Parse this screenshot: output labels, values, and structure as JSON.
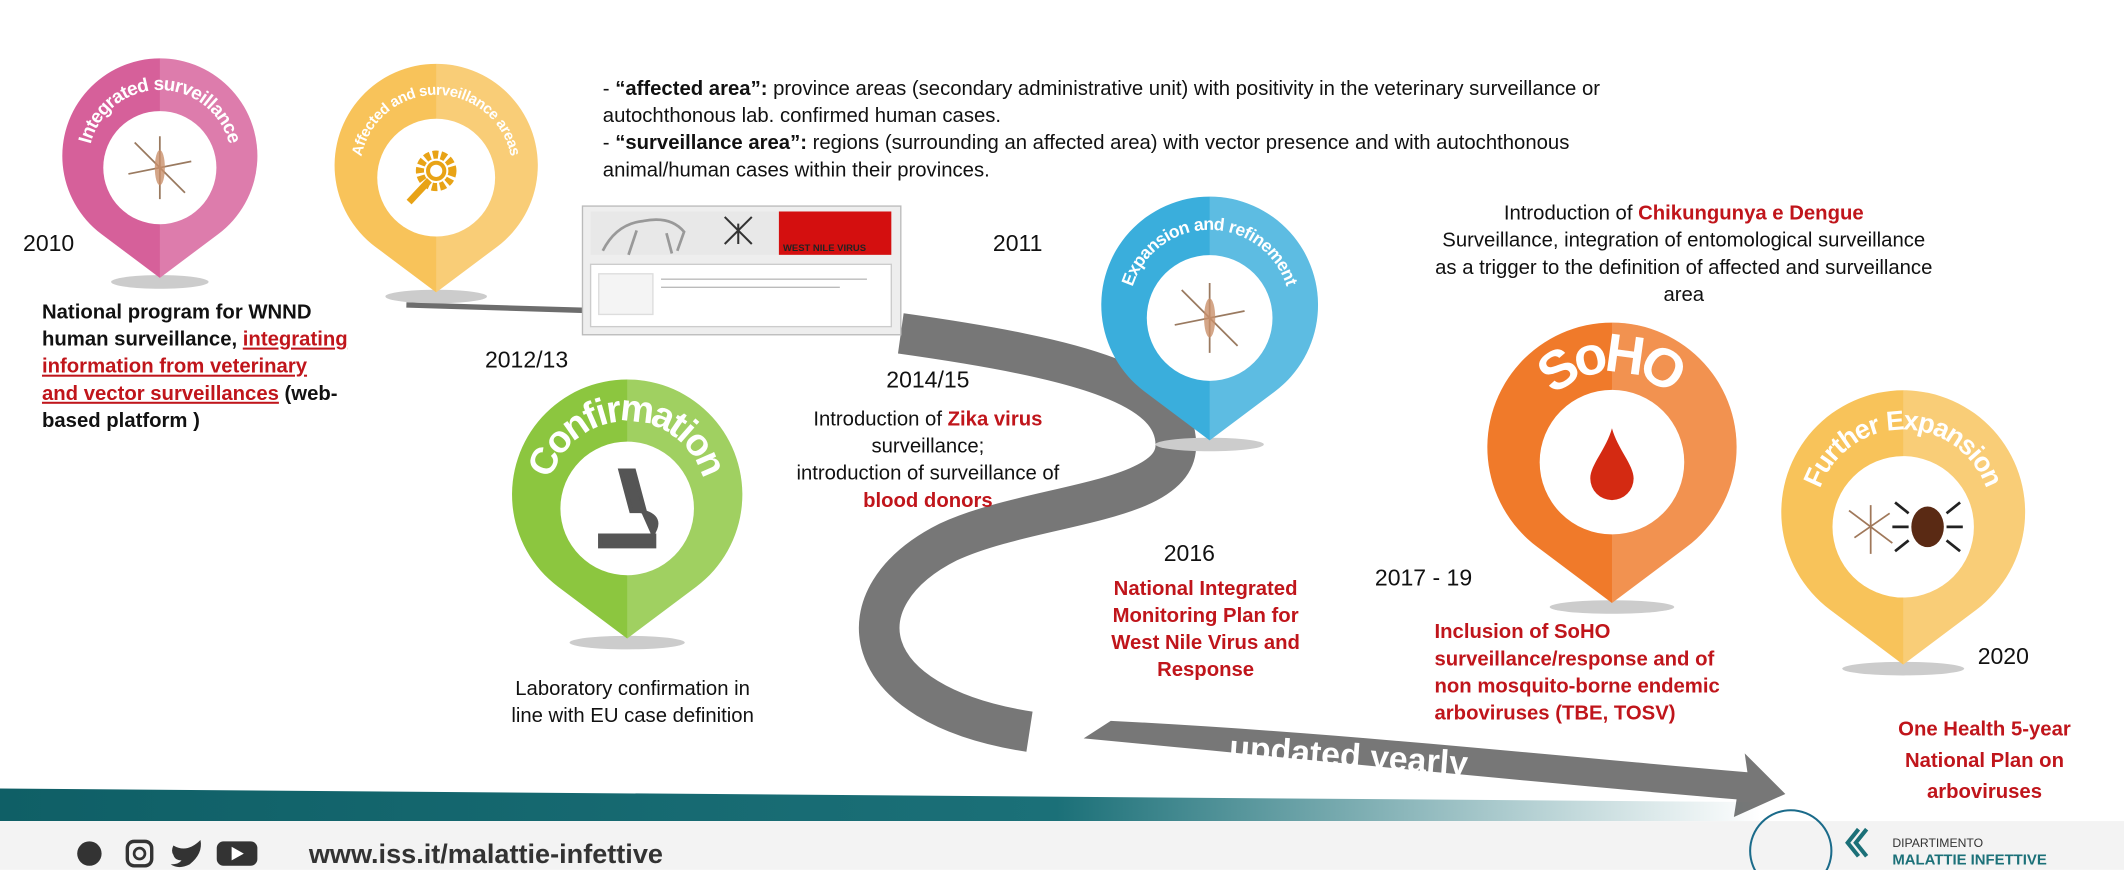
{
  "pins": [
    "Integrated surveillance",
    "Affected and surveillance areas",
    "Confirmation",
    "Expansion and refinement",
    "SoHO",
    "Further Expansion"
  ],
  "definitions": [
    [
      "- ",
      "“affected area”:",
      " province areas (secondary administrative unit) with positivity in the veterinary surveillance or"
    ],
    [
      "autochthonous lab. confirmed human cases."
    ],
    [
      "- ",
      "“surveillance area”:",
      " regions (surrounding an affected area) with vector presence and with autochthonous"
    ],
    [
      "animal/human cases within their provinces."
    ]
  ],
  "years": [
    "2010",
    "2012/13",
    "2011",
    "2014/15",
    "2016",
    "2017 - 19",
    "2020"
  ],
  "wnnd": [
    [
      "National program for WNND"
    ],
    [
      "human surveillance, ",
      "integrating"
    ],
    [
      "information from veterinary"
    ],
    [
      "and vector surveillances",
      " (web-"
    ],
    [
      "based platform )"
    ]
  ],
  "chik": [
    [
      "Introduction of ",
      "Chikungunya e Dengue"
    ],
    [
      "Surveillance, integration of entomological surveillance"
    ],
    [
      "as a trigger to the definition of affected and surveillance"
    ],
    [
      "area"
    ]
  ],
  "zika": [
    [
      "Introduction of ",
      "Zika virus"
    ],
    [
      "surveillance;"
    ],
    [
      "introduction of surveillance of"
    ],
    [
      "blood donors"
    ]
  ],
  "lab": [
    [
      "Laboratory confirmation in"
    ],
    [
      "line with EU case definition"
    ]
  ],
  "plan2016": [
    [
      "National Integrated"
    ],
    [
      "Monitoring Plan for"
    ],
    [
      "West Nile Virus and"
    ],
    [
      "Response"
    ]
  ],
  "soho": [
    [
      "Inclusion of SoHO"
    ],
    [
      "surveillance/response and of"
    ],
    [
      "non mosquito-borne endemic"
    ],
    [
      "arboviruses (TBE, TOSV)"
    ]
  ],
  "one_health": [
    [
      "One Health 5-year"
    ],
    [
      "National Plan on"
    ],
    [
      "arboviruses"
    ]
  ],
  "arrow_label": "updated yearly",
  "screenshot_banner": "WEST NILE VIRUS",
  "footer": {
    "url": "www.iss.it/malattie-infettive",
    "department": "DIPARTIMENTO",
    "department_name": "MALATTIE INFETTIVE"
  }
}
